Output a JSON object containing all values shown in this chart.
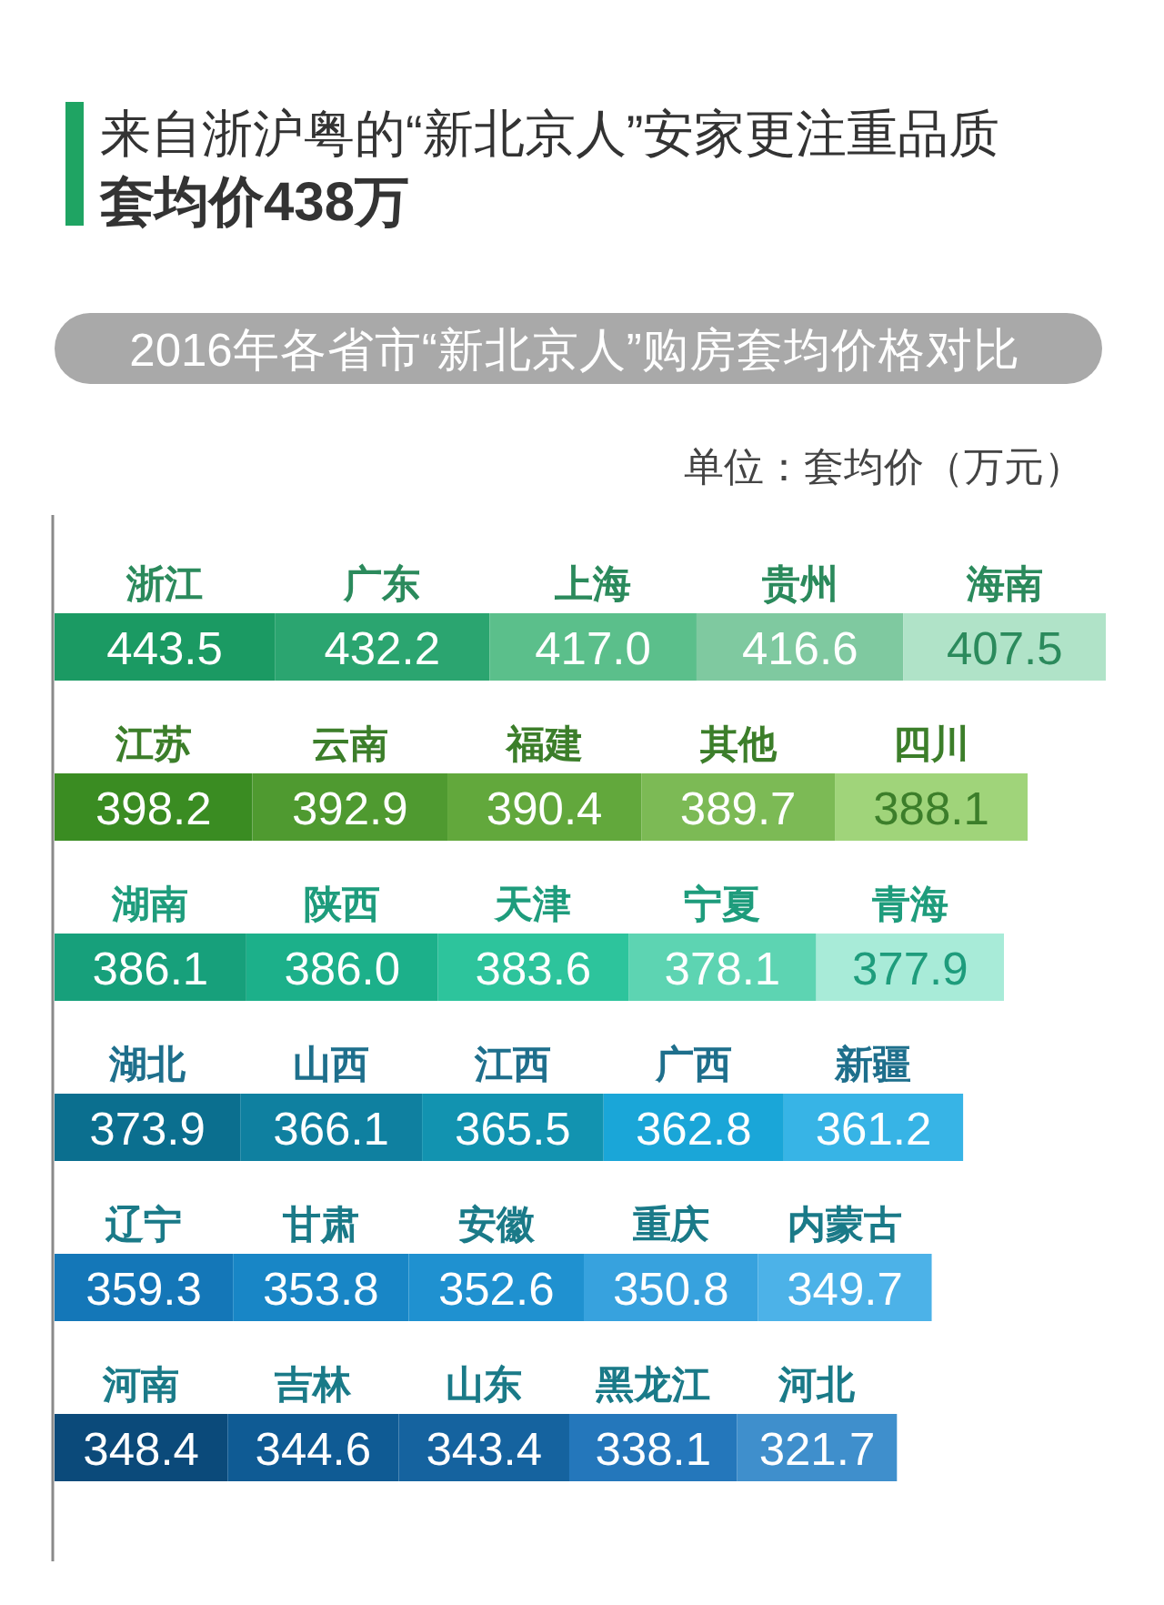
{
  "chart_data": {
    "type": "other",
    "title": "来自浙沪粤的“新北京人”安家更注重品质",
    "subtitle": "套均价438万",
    "annotations": [
      "2016年各省市“新北京人”购房套均价格对比",
      "单位：套均价（万元）"
    ],
    "categories": [
      "浙江",
      "广东",
      "上海",
      "贵州",
      "海南",
      "江苏",
      "云南",
      "福建",
      "其他",
      "四川",
      "湖南",
      "陕西",
      "天津",
      "宁夏",
      "青海",
      "湖北",
      "山西",
      "江西",
      "广西",
      "新疆",
      "辽宁",
      "甘肃",
      "安徽",
      "重庆",
      "内蒙古",
      "河南",
      "吉林",
      "山东",
      "黑龙江",
      "河北"
    ],
    "values": [
      443.5,
      432.2,
      417.0,
      416.6,
      407.5,
      398.2,
      392.9,
      390.4,
      389.7,
      388.1,
      386.1,
      386.0,
      383.6,
      378.1,
      377.9,
      373.9,
      366.1,
      365.5,
      362.8,
      361.2,
      359.3,
      353.8,
      352.6,
      350.8,
      349.7,
      348.4,
      344.6,
      343.4,
      338.1,
      321.7
    ],
    "value_labels": [
      "443.5",
      "432.2",
      "417.0",
      "416.6",
      "407.5",
      "398.2",
      "392.9",
      "390.4",
      "389.7",
      "388.1",
      "386.1",
      "386.0",
      "383.6",
      "378.1",
      "377.9",
      "373.9",
      "366.1",
      "365.5",
      "362.8",
      "361.2",
      "359.3",
      "353.8",
      "352.6",
      "350.8",
      "349.7",
      "348.4",
      "344.6",
      "343.4",
      "338.1",
      "321.7"
    ],
    "colors": [
      "#1b9a63",
      "#2ba570",
      "#5bbf8b",
      "#7fc9a0",
      "#b0e3c8",
      "#3a8c22",
      "#4f9a30",
      "#62a83c",
      "#7cba55",
      "#a0d47a",
      "#17a07b",
      "#1cb08a",
      "#2dc49c",
      "#5dd4b2",
      "#a8ebd8",
      "#0b6f8f",
      "#0f80a0",
      "#1293b0",
      "#1aa6d8",
      "#37b4e6",
      "#1477b8",
      "#1886c6",
      "#1f91d0",
      "#37a2de",
      "#4cb2e8",
      "#0b4a7a",
      "#0f5b94",
      "#15639f",
      "#2477bb",
      "#3f8fcc"
    ]
  }
}
